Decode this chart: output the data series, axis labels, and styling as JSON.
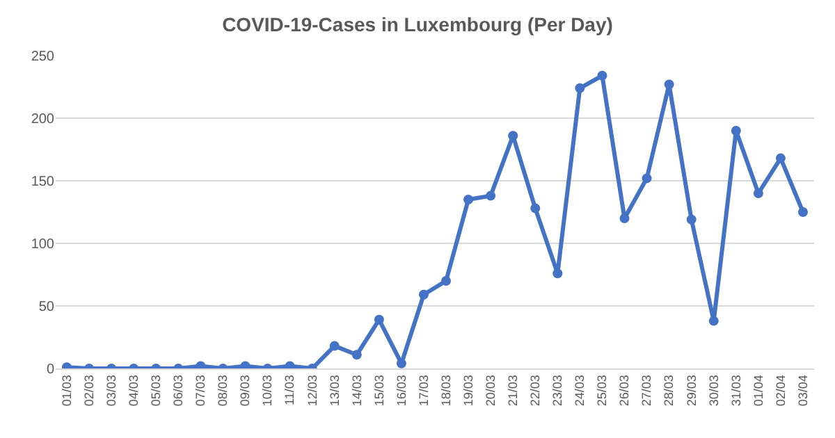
{
  "chart_data": {
    "type": "line",
    "title": "COVID-19-Cases in Luxembourg (Per Day)",
    "categories": [
      "01/03",
      "02/03",
      "03/03",
      "04/03",
      "05/03",
      "06/03",
      "07/03",
      "08/03",
      "09/03",
      "10/03",
      "11/03",
      "12/03",
      "13/03",
      "14/03",
      "15/03",
      "16/03",
      "17/03",
      "18/03",
      "19/03",
      "20/03",
      "21/03",
      "22/03",
      "23/03",
      "24/03",
      "25/03",
      "26/03",
      "27/03",
      "28/03",
      "29/03",
      "30/03",
      "31/03",
      "01/04",
      "02/04",
      "03/04"
    ],
    "series": [
      {
        "color": "#4472c4",
        "values": [
          1,
          0,
          0,
          0,
          0,
          0,
          2,
          0,
          2,
          0,
          2,
          0,
          18,
          11,
          39,
          4,
          59,
          70,
          135,
          138,
          186,
          128,
          76,
          224,
          234,
          120,
          152,
          227,
          119,
          38,
          190,
          140,
          168,
          125
        ]
      }
    ],
    "ylim": [
      0,
      250
    ],
    "yticks": [
      0,
      50,
      100,
      150,
      200,
      250
    ],
    "grid": "y",
    "marker": "circle",
    "line_style": "solid"
  }
}
